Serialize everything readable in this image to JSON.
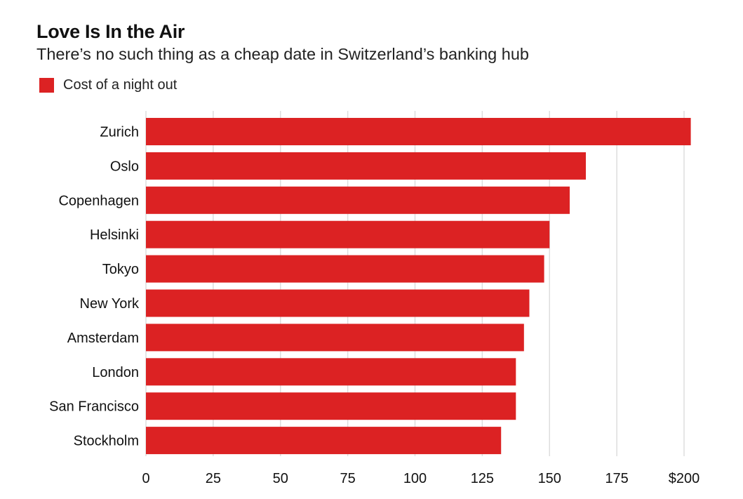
{
  "title": "Love Is In the Air",
  "subtitle": "There’s no such thing as a cheap date in Switzerland’s banking hub",
  "legend": {
    "label": "Cost of a night out",
    "color": "#dc2223"
  },
  "chart_data": {
    "type": "bar",
    "orientation": "horizontal",
    "categories": [
      "Zurich",
      "Oslo",
      "Copenhagen",
      "Helsinki",
      "Tokyo",
      "New York",
      "Amsterdam",
      "London",
      "San Francisco",
      "Stockholm"
    ],
    "series": [
      {
        "name": "Cost of a night out",
        "values": [
          202.5,
          163.5,
          157.5,
          150,
          148,
          142.5,
          140.5,
          137.5,
          137.5,
          132
        ],
        "color": "#dc2223"
      }
    ],
    "title": "Love Is In the Air",
    "subtitle": "There’s no such thing as a cheap date in Switzerland’s banking hub",
    "xlabel": "",
    "ylabel": "",
    "xlim": [
      0,
      200
    ],
    "xticks": [
      0,
      25,
      50,
      75,
      100,
      125,
      150,
      175,
      200
    ],
    "xtick_labels": [
      "0",
      "25",
      "50",
      "75",
      "100",
      "125",
      "150",
      "175",
      "$200"
    ],
    "grid": true,
    "legend_position": "top-left",
    "grid_color": "#dddddd"
  }
}
